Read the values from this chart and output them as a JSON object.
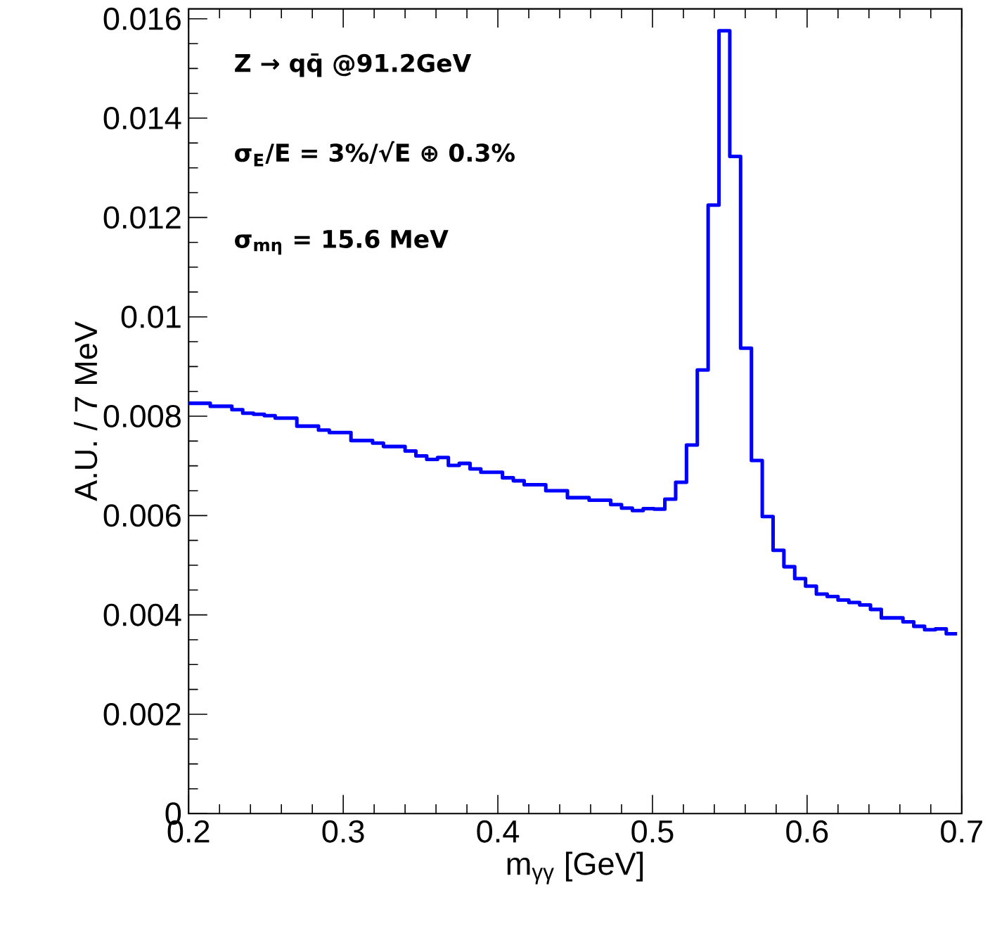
{
  "chart_data": {
    "type": "histogram",
    "xlabel": "m$_{γγ}$ [GeV]",
    "ylabel": "A.U. / 7 MeV",
    "annotations": [
      "Z → qq̄ @91.2GeV",
      "σ$_{E}$/E = 3%/√E ⊕ 0.3%",
      "σ$_{mη}$ = 15.6 MeV"
    ],
    "color": "#0000ff",
    "bins": [
      0.2,
      0.207,
      0.214,
      0.221,
      0.228,
      0.235,
      0.242,
      0.249,
      0.256,
      0.263,
      0.27,
      0.277,
      0.284,
      0.291,
      0.298,
      0.305,
      0.312,
      0.319,
      0.326,
      0.333,
      0.34,
      0.347,
      0.354,
      0.361,
      0.368,
      0.375,
      0.382,
      0.389,
      0.396,
      0.403,
      0.41,
      0.417,
      0.424,
      0.431,
      0.438,
      0.445,
      0.452,
      0.459,
      0.466,
      0.473,
      0.48,
      0.487,
      0.494,
      0.501,
      0.508,
      0.515,
      0.522,
      0.529,
      0.536,
      0.543,
      0.55,
      0.557,
      0.564,
      0.571,
      0.578,
      0.585,
      0.592,
      0.599,
      0.606,
      0.613,
      0.62,
      0.627,
      0.634,
      0.641,
      0.648,
      0.655,
      0.662,
      0.669,
      0.676,
      0.683,
      0.69,
      0.697
    ],
    "values": [
      0.00826,
      0.00826,
      0.0082,
      0.0082,
      0.00813,
      0.00806,
      0.00804,
      0.00801,
      0.00796,
      0.00796,
      0.0078,
      0.0078,
      0.00772,
      0.00767,
      0.00767,
      0.00751,
      0.00751,
      0.00746,
      0.00739,
      0.00739,
      0.0073,
      0.0072,
      0.00713,
      0.00717,
      0.00701,
      0.00705,
      0.00694,
      0.00687,
      0.00687,
      0.00676,
      0.0067,
      0.00662,
      0.00662,
      0.0065,
      0.0065,
      0.00636,
      0.00636,
      0.00631,
      0.00631,
      0.00622,
      0.00615,
      0.0061,
      0.00614,
      0.00613,
      0.00633,
      0.00667,
      0.00742,
      0.00893,
      0.01225,
      0.01576,
      0.01323,
      0.00937,
      0.00711,
      0.00598,
      0.0053,
      0.00497,
      0.00473,
      0.00458,
      0.00442,
      0.00437,
      0.0043,
      0.00425,
      0.0042,
      0.00411,
      0.00394,
      0.00394,
      0.00386,
      0.00377,
      0.0037,
      0.00372,
      0.00362
    ],
    "xlim": [
      0.2,
      0.7
    ],
    "xticks": [
      0.2,
      0.3,
      0.4,
      0.5,
      0.6,
      0.7
    ],
    "ylim": [
      0,
      0.0162
    ],
    "yticks": [
      0,
      0.002,
      0.004,
      0.006,
      0.008,
      0.01,
      0.012,
      0.014,
      0.016
    ]
  }
}
